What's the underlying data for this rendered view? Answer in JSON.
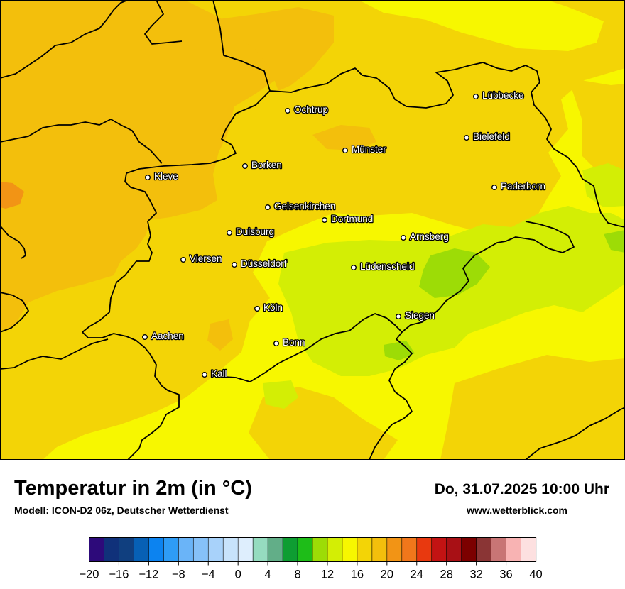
{
  "header": {
    "title": "Temperatur in 2m (in °C)",
    "model": "Modell: ICON-D2 06z, Deutscher Wetterdienst",
    "datetime": "Do, 31.07.2025 10:00 Uhr",
    "website": "www.wetterblick.com"
  },
  "cities": [
    {
      "name": "Lübbecke"
    },
    {
      "name": "Ochtrup"
    },
    {
      "name": "Bielefeld"
    },
    {
      "name": "Münster"
    },
    {
      "name": "Borken"
    },
    {
      "name": "Kleve"
    },
    {
      "name": "Paderborn"
    },
    {
      "name": "Gelsenkirchen"
    },
    {
      "name": "Dortmund"
    },
    {
      "name": "Duisburg"
    },
    {
      "name": "Arnsberg"
    },
    {
      "name": "Viersen"
    },
    {
      "name": "Düsseldorf"
    },
    {
      "name": "Lüdenscheid"
    },
    {
      "name": "Köln"
    },
    {
      "name": "Siegen"
    },
    {
      "name": "Aachen"
    },
    {
      "name": "Bonn"
    },
    {
      "name": "Kall"
    }
  ],
  "legend": {
    "unit": "°C",
    "min": -20,
    "max": 40,
    "step": 2,
    "tick_labels": [
      "−20",
      "−16",
      "−12",
      "−8",
      "−4",
      "0",
      "4",
      "8",
      "12",
      "16",
      "20",
      "24",
      "28",
      "32",
      "36",
      "40"
    ],
    "colors": [
      "#2d0a7a",
      "#10317a",
      "#103f7f",
      "#0760b5",
      "#0c83f0",
      "#2e9cf6",
      "#6ab4f8",
      "#86c1f8",
      "#a8d2fa",
      "#c8e3fb",
      "#deeefd",
      "#95dcbf",
      "#62ae88",
      "#0e9d32",
      "#1ebd18",
      "#9ddc06",
      "#d3ee05",
      "#f7f700",
      "#f3d406",
      "#f3bf0c",
      "#f29415",
      "#f1771b",
      "#e8390f",
      "#c31313",
      "#a81015",
      "#7c0000",
      "#8a3535",
      "#c87575",
      "#f8b3b3",
      "#fde0e0"
    ]
  },
  "colors": {
    "temp_18_20": "#f3d406",
    "temp_20_22": "#f3bf0c",
    "temp_22_24": "#f29415",
    "temp_16_18": "#f7f700",
    "temp_14_16": "#d3ee05",
    "temp_12_14": "#9ddc06",
    "border": "#000000"
  }
}
